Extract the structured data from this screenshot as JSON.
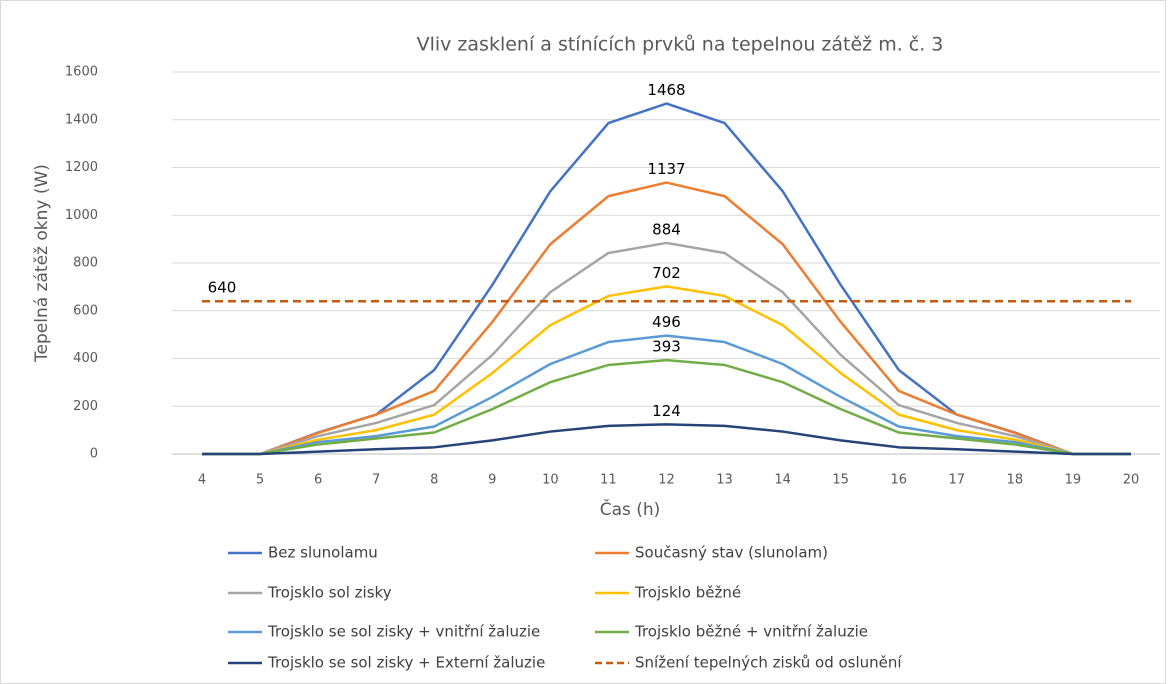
{
  "chart_data": {
    "type": "line",
    "title": "Vliv zasklení a stínících prvků na tepelnou zátěž m. č. 3",
    "x_label": "Čas (h)",
    "y_label": "Tepelná zátěž okny (W)",
    "x": [
      4,
      5,
      6,
      7,
      8,
      9,
      10,
      11,
      12,
      13,
      14,
      15,
      16,
      17,
      18,
      19,
      20
    ],
    "xlim": [
      4,
      20
    ],
    "xticks": [
      4,
      5,
      6,
      7,
      8,
      9,
      10,
      11,
      12,
      13,
      14,
      15,
      16,
      17,
      18,
      19,
      20
    ],
    "ylim": [
      0,
      1600
    ],
    "yticks": [
      0,
      200,
      400,
      600,
      800,
      1000,
      1200,
      1400,
      1600
    ],
    "grid": true,
    "legend": "bottom",
    "series": [
      {
        "name": "Bez slunolamu",
        "color": "#4472c4",
        "values": [
          0,
          0,
          90,
          165,
          352,
          708,
          1101,
          1386,
          1468,
          1386,
          1101,
          708,
          352,
          165,
          90,
          0,
          0
        ]
      },
      {
        "name": "Současný stav (slunolam)",
        "color": "#ed7d31",
        "values": [
          0,
          0,
          88,
          165,
          264,
          553,
          879,
          1080,
          1137,
          1080,
          879,
          553,
          264,
          165,
          88,
          0,
          0
        ]
      },
      {
        "name": "Trojsklo sol zisky",
        "color": "#a5a5a5",
        "values": [
          0,
          0,
          75,
          130,
          205,
          415,
          678,
          842,
          884,
          842,
          678,
          415,
          205,
          130,
          75,
          0,
          0
        ]
      },
      {
        "name": "Trojsklo běžné",
        "color": "#ffc000",
        "values": [
          0,
          0,
          60,
          100,
          165,
          339,
          540,
          662,
          702,
          662,
          540,
          339,
          165,
          100,
          60,
          0,
          0
        ]
      },
      {
        "name": "Trojsklo se sol zisky + vnitřní žaluzie",
        "color": "#5b9bd5",
        "values": [
          0,
          0,
          50,
          75,
          115,
          239,
          377,
          469,
          496,
          469,
          377,
          239,
          115,
          75,
          50,
          0,
          0
        ]
      },
      {
        "name": "Trojsklo běžné + vnitřní žaluzie",
        "color": "#70ad47",
        "values": [
          0,
          0,
          40,
          65,
          90,
          188,
          301,
          373,
          393,
          373,
          301,
          188,
          90,
          65,
          40,
          0,
          0
        ]
      },
      {
        "name": "Trojsklo se sol zisky + Externí žaluzie",
        "color": "#264478",
        "values": [
          0,
          0,
          10,
          20,
          28,
          57,
          94,
          118,
          124,
          118,
          94,
          57,
          28,
          20,
          10,
          0,
          0
        ]
      },
      {
        "name": "Snížení tepelných zisků od oslunění",
        "color": "#c55a11",
        "dashed": true,
        "values": [
          640,
          640,
          640,
          640,
          640,
          640,
          640,
          640,
          640,
          640,
          640,
          640,
          640,
          640,
          640,
          640,
          640
        ]
      }
    ]
  }
}
